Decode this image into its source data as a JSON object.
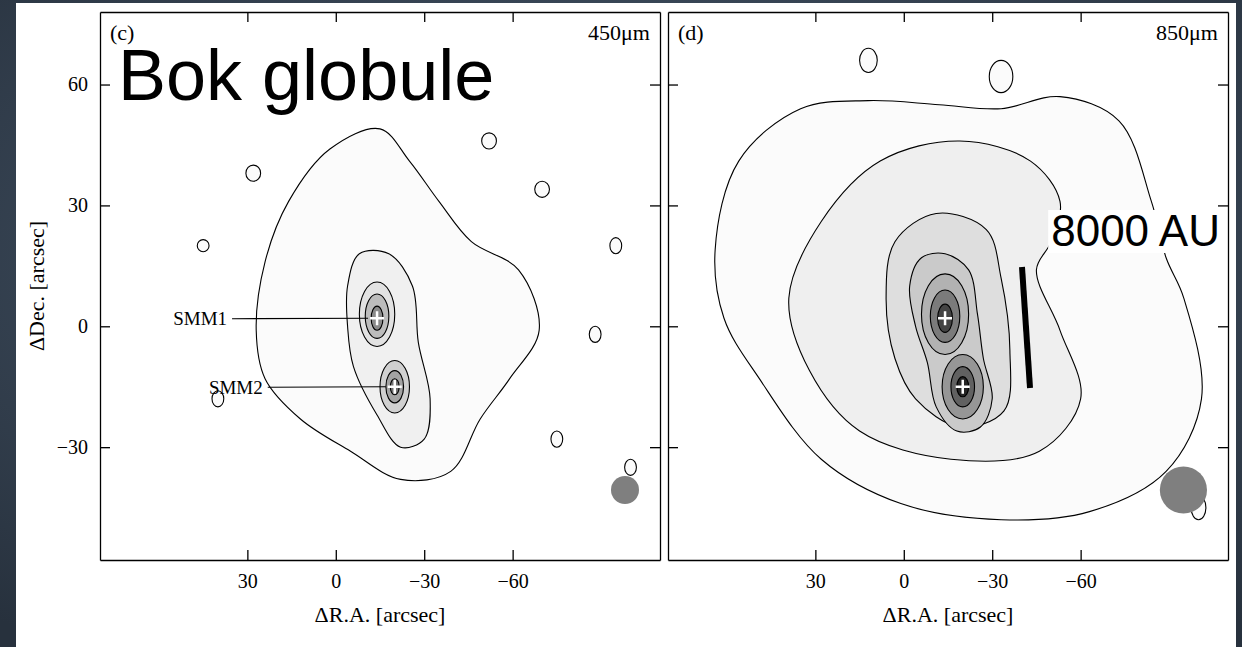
{
  "chart_data": [
    {
      "type": "contour",
      "panel_label": "(c)",
      "title": "450μm",
      "annotations": [
        "Bok globule"
      ],
      "xlabel": "ΔR.A. [arcsec]",
      "ylabel": "ΔDec. [arcsec]",
      "xlim": [
        80,
        -110
      ],
      "ylim": [
        -58,
        78
      ],
      "xticks": [
        30,
        0,
        -30,
        -60
      ],
      "yticks": [
        -30,
        0,
        30,
        60
      ],
      "sources": [
        {
          "name": "SMM1",
          "x": -14,
          "y": 2
        },
        {
          "name": "SMM2",
          "x": -20,
          "y": -15
        }
      ],
      "islands": [
        {
          "cx": -52,
          "cy": 46,
          "rx": 2.5,
          "ry": 2
        },
        {
          "cx": -70,
          "cy": 34,
          "rx": 2.5,
          "ry": 2
        },
        {
          "cx": -88,
          "cy": -2,
          "rx": 2,
          "ry": 2
        },
        {
          "cx": -75,
          "cy": -28,
          "rx": 2,
          "ry": 2
        },
        {
          "cx": 40,
          "cy": -18,
          "rx": 2,
          "ry": 2
        },
        {
          "cx": 28,
          "cy": 38,
          "rx": 2.5,
          "ry": 2
        },
        {
          "cx": -100,
          "cy": -35,
          "rx": 2,
          "ry": 2
        },
        {
          "cx": -95,
          "cy": 20,
          "rx": 2,
          "ry": 2
        },
        {
          "cx": 45,
          "cy": 20,
          "rx": 2,
          "ry": 1.5
        }
      ],
      "contours": [
        {
          "x": [
            27,
            24,
            16,
            2,
            -15,
            -25,
            -35,
            -46,
            -62,
            -69,
            -59,
            -49,
            -39,
            -22,
            -5,
            12,
            24
          ],
          "y": [
            -1,
            16,
            31,
            44,
            49,
            41,
            31,
            21,
            14,
            -1,
            -13,
            -23,
            -36,
            -38,
            -31,
            -23,
            -13
          ]
        },
        {
          "x": [
            -4,
            -8,
            -18,
            -26,
            -28,
            -32,
            -30,
            -22,
            -14,
            -6,
            -4
          ],
          "y": [
            10,
            18,
            18,
            10,
            -4,
            -18,
            -28,
            -30,
            -22,
            -10,
            0
          ]
        },
        {
          "cx": -14,
          "cy": 3,
          "rx": 6,
          "ry": 8
        },
        {
          "cx": -20,
          "cy": -15,
          "rx": 5,
          "ry": 6.5
        },
        {
          "cx": -14,
          "cy": 2.5,
          "rx": 4,
          "ry": 5.5
        },
        {
          "cx": -20,
          "cy": -15,
          "rx": 3,
          "ry": 4
        },
        {
          "cx": -14,
          "cy": 2,
          "rx": 2,
          "ry": 3
        },
        {
          "cx": -20,
          "cy": -15,
          "rx": 1.5,
          "ry": 2
        }
      ],
      "beam": 9.5
    },
    {
      "type": "contour",
      "panel_label": "(d)",
      "title": "850μm",
      "annotations": [
        "8000 AU"
      ],
      "xlabel": "ΔR.A. [arcsec]",
      "xlim": [
        80,
        -110
      ],
      "ylim": [
        -58,
        78
      ],
      "xticks": [
        30,
        0,
        -30,
        -60
      ],
      "yticks": [
        -30,
        0,
        30,
        60
      ],
      "tick_labels": "x",
      "sources": [
        {
          "x": -14,
          "y": 2
        },
        {
          "x": -20,
          "y": -15
        }
      ],
      "islands": [
        {
          "cx": 12,
          "cy": 66,
          "rx": 3,
          "ry": 3
        },
        {
          "cx": -33,
          "cy": 62,
          "rx": 4,
          "ry": 4
        },
        {
          "cx": -100,
          "cy": -45,
          "rx": 2.5,
          "ry": 3
        }
      ],
      "contours": [
        {
          "x": [
            64,
            56,
            35,
            12,
            -12,
            -33,
            -53,
            -73,
            -84,
            -89,
            -95,
            -101,
            -89,
            -63,
            -33,
            1,
            28,
            49,
            61
          ],
          "y": [
            19,
            41,
            54,
            56,
            55,
            54,
            57,
            51,
            31,
            17,
            7,
            -18,
            -36,
            -46,
            -48,
            -44,
            -33,
            -13,
            2
          ]
        },
        {
          "x": [
            39,
            28,
            8,
            -19,
            -43,
            -53,
            -50,
            -45,
            -53,
            -60,
            -46,
            -16,
            15,
            32
          ],
          "y": [
            7,
            26,
            41,
            46,
            41,
            31,
            21,
            14,
            -1,
            -18,
            -31,
            -33,
            -26,
            -11
          ]
        },
        {
          "x": [
            6,
            3,
            -11,
            -28,
            -33,
            -36,
            -34,
            -19,
            -4,
            3
          ],
          "y": [
            7,
            21,
            28,
            24,
            12,
            -6,
            -21,
            -25,
            -18,
            -8
          ]
        },
        {
          "x": [
            -2,
            -6,
            -14,
            -22,
            -25,
            -27,
            -30,
            -26,
            -18,
            -11,
            -8,
            -4
          ],
          "y": [
            10,
            17,
            18,
            14,
            3,
            -8,
            -18,
            -25,
            -26,
            -20,
            -9,
            0
          ]
        },
        {
          "cx": -14,
          "cy": 3,
          "rx": 8,
          "ry": 10
        },
        {
          "cx": -20,
          "cy": -15,
          "rx": 7,
          "ry": 8
        },
        {
          "cx": -14,
          "cy": 2.5,
          "rx": 5,
          "ry": 6.5
        },
        {
          "cx": -20,
          "cy": -15,
          "rx": 4,
          "ry": 5
        },
        {
          "cx": -14,
          "cy": 2,
          "rx": 2.5,
          "ry": 3.5
        },
        {
          "cx": -20,
          "cy": -15,
          "rx": 2,
          "ry": 2.5
        }
      ],
      "beam": 16
    }
  ]
}
